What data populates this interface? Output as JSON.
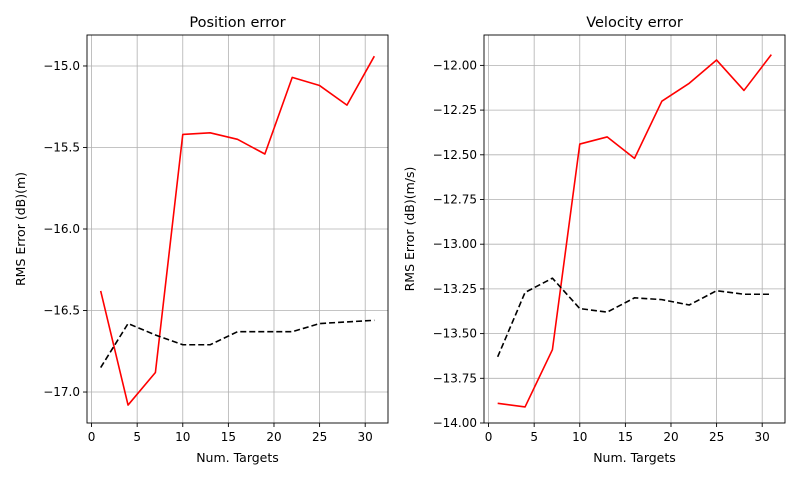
{
  "chart_data": [
    {
      "type": "line",
      "title": "Position error",
      "xlabel": "Num. Targets",
      "ylabel": "RMS Error (dB)(m)",
      "xlim": [
        -0.5,
        32.5
      ],
      "ylim": [
        -17.19,
        -14.81
      ],
      "xticks": [
        0,
        5,
        10,
        15,
        20,
        25,
        30
      ],
      "yticks": [
        -17.0,
        -16.5,
        -16.0,
        -15.5,
        -15.0
      ],
      "ytick_labels": [
        "−17.0",
        "−16.5",
        "−16.0",
        "−15.5",
        "−15.0"
      ],
      "grid": true,
      "x": [
        1,
        4,
        7,
        10,
        13,
        16,
        19,
        22,
        25,
        28,
        31
      ],
      "series": [
        {
          "color": "#ff0000",
          "dash": "solid",
          "values": [
            -16.38,
            -17.08,
            -16.88,
            -15.42,
            -15.41,
            -15.45,
            -15.54,
            -15.07,
            -15.12,
            -15.24,
            -14.94
          ]
        },
        {
          "color": "#000000",
          "dash": "dashed",
          "values": [
            -16.85,
            -16.58,
            -16.65,
            -16.71,
            -16.71,
            -16.63,
            -16.63,
            -16.63,
            -16.58,
            -16.57,
            -16.56
          ]
        }
      ]
    },
    {
      "type": "line",
      "title": "Velocity error",
      "xlabel": "Num. Targets",
      "ylabel": "RMS Error (dB)(m/s)",
      "xlim": [
        -0.5,
        32.5
      ],
      "ylim": [
        -14.0,
        -11.83
      ],
      "xticks": [
        0,
        5,
        10,
        15,
        20,
        25,
        30
      ],
      "yticks": [
        -14.0,
        -13.75,
        -13.5,
        -13.25,
        -13.0,
        -12.75,
        -12.5,
        -12.25,
        -12.0
      ],
      "ytick_labels": [
        "−14.00",
        "−13.75",
        "−13.50",
        "−13.25",
        "−13.00",
        "−12.75",
        "−12.50",
        "−12.25",
        "−12.00"
      ],
      "grid": true,
      "x": [
        1,
        4,
        7,
        10,
        13,
        16,
        19,
        22,
        25,
        28,
        31
      ],
      "series": [
        {
          "color": "#ff0000",
          "dash": "solid",
          "values": [
            -13.89,
            -13.91,
            -13.59,
            -12.44,
            -12.4,
            -12.52,
            -12.2,
            -12.1,
            -11.97,
            -12.14,
            -11.94
          ]
        },
        {
          "color": "#000000",
          "dash": "dashed",
          "values": [
            -13.63,
            -13.27,
            -13.19,
            -13.36,
            -13.38,
            -13.3,
            -13.31,
            -13.34,
            -13.26,
            -13.28,
            -13.28
          ]
        }
      ]
    }
  ]
}
